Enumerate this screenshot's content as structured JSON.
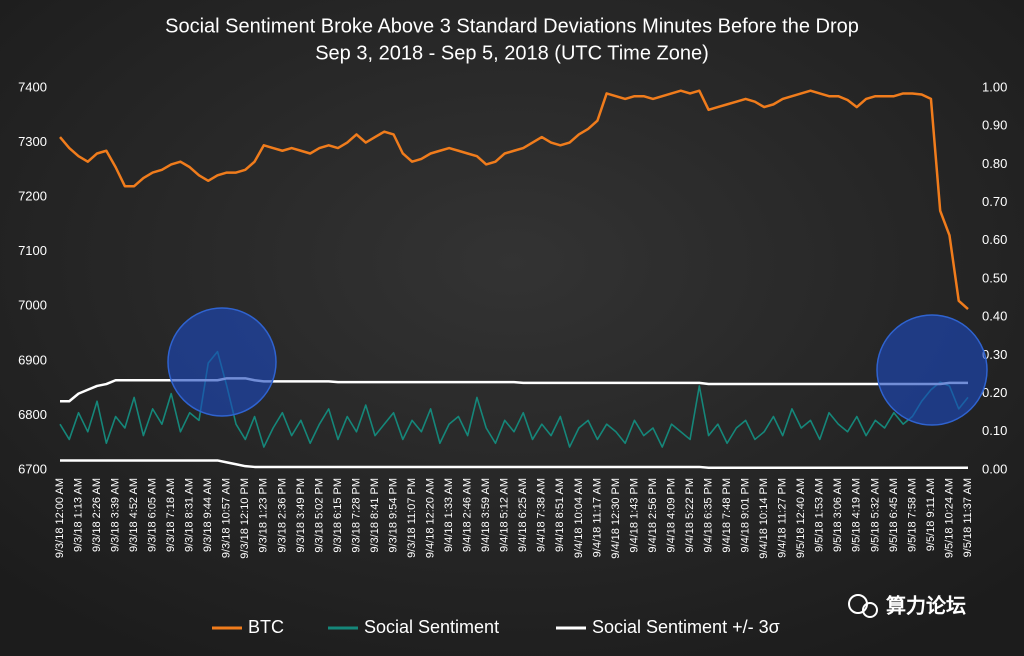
{
  "chart_data": {
    "type": "line",
    "title": "Social Sentiment Broke Above 3 Standard Deviations Minutes Before the Drop",
    "subtitle": "Sep 3, 2018 - Sep 5, 2018 (UTC Time Zone)",
    "watermark": "算力论坛",
    "categories": [
      "9/3/18 12:00 AM",
      null,
      "9/3/18 1:13 AM",
      null,
      "9/3/18 2:26 AM",
      null,
      "9/3/18 3:39 AM",
      null,
      "9/3/18 4:52 AM",
      null,
      "9/3/18 6:05 AM",
      null,
      "9/3/18 7:18 AM",
      null,
      "9/3/18 8:31 AM",
      null,
      "9/3/18 9:44 AM",
      null,
      "9/3/18 10:57 AM",
      null,
      "9/3/18 12:10 PM",
      null,
      "9/3/18 1:23 PM",
      null,
      "9/3/18 2:36 PM",
      null,
      "9/3/18 3:49 PM",
      null,
      "9/3/18 5:02 PM",
      null,
      "9/3/18 6:15 PM",
      null,
      "9/3/18 7:28 PM",
      null,
      "9/3/18 8:41 PM",
      null,
      "9/3/18 9:54 PM",
      null,
      "9/3/18 11:07 PM",
      null,
      "9/4/18 12:20 AM",
      null,
      "9/4/18 1:33 AM",
      null,
      "9/4/18 2:46 AM",
      null,
      "9/4/18 3:59 AM",
      null,
      "9/4/18 5:12 AM",
      null,
      "9/4/18 6:25 AM",
      null,
      "9/4/18 7:38 AM",
      null,
      "9/4/18 8:51 AM",
      null,
      "9/4/18 10:04 AM",
      null,
      "9/4/18 11:17 AM",
      null,
      "9/4/18 12:30 PM",
      null,
      "9/4/18 1:43 PM",
      null,
      "9/4/18 2:56 PM",
      null,
      "9/4/18 4:09 PM",
      null,
      "9/4/18 5:22 PM",
      null,
      "9/4/18 6:35 PM",
      null,
      "9/4/18 7:48 PM",
      null,
      "9/4/18 9:01 PM",
      null,
      "9/4/18 10:14 PM",
      null,
      "9/4/18 11:27 PM",
      null,
      "9/5/18 12:40 AM",
      null,
      "9/5/18 1:53 AM",
      null,
      "9/5/18 3:06 AM",
      null,
      "9/5/18 4:19 AM",
      null,
      "9/5/18 5:32 AM",
      null,
      "9/5/18 6:45 AM",
      null,
      "9/5/18 7:58 AM",
      null,
      "9/5/18 9:11 AM",
      null,
      "9/5/18 10:24 AM",
      null,
      "9/5/18 11:37 AM"
    ],
    "ylim": [
      6700,
      7400
    ],
    "yticks": [
      6700,
      6800,
      6900,
      7000,
      7100,
      7200,
      7300,
      7400
    ],
    "y2lim": [
      0,
      1
    ],
    "y2ticks": [
      {
        "value": 0,
        "label": "0.00"
      },
      {
        "value": 0.1,
        "label": "0.10"
      },
      {
        "value": 0.2,
        "label": "0.20"
      },
      {
        "value": 0.3,
        "label": "0.30"
      },
      {
        "value": 0.4,
        "label": "0.40"
      },
      {
        "value": 0.5,
        "label": "0.50"
      },
      {
        "value": 0.6,
        "label": "0.60"
      },
      {
        "value": 0.7,
        "label": "0.70"
      },
      {
        "value": 0.8,
        "label": "0.80"
      },
      {
        "value": 0.9,
        "label": "0.90"
      },
      {
        "value": 1,
        "label": "1.00"
      }
    ],
    "grid": false,
    "legend": "bottom",
    "series": [
      {
        "name": "BTC",
        "color": "#f07c1c",
        "values": [
          7310,
          7290,
          7275,
          7265,
          7280,
          7285,
          7255,
          7220,
          7220,
          7235,
          7245,
          7250,
          7260,
          7265,
          7255,
          7240,
          7230,
          7240,
          7245,
          7245,
          7250,
          7265,
          7295,
          7290,
          7285,
          7290,
          7285,
          7280,
          7290,
          7295,
          7290,
          7300,
          7315,
          7300,
          7310,
          7320,
          7315,
          7280,
          7265,
          7270,
          7280,
          7285,
          7290,
          7285,
          7280,
          7275,
          7260,
          7265,
          7280,
          7285,
          7290,
          7300,
          7310,
          7300,
          7295,
          7300,
          7315,
          7325,
          7340,
          7390,
          7385,
          7380,
          7385,
          7385,
          7380,
          7385,
          7390,
          7395,
          7390,
          7395,
          7360,
          7365,
          7370,
          7375,
          7380,
          7375,
          7365,
          7370,
          7380,
          7385,
          7390,
          7395,
          7390,
          7385,
          7385,
          7378,
          7365,
          7380,
          7385,
          7385,
          7385,
          7390,
          7390,
          7388,
          7380,
          7175,
          7130,
          7010,
          6995
        ]
      },
      {
        "name": "Social Sentiment",
        "color": "#15877a",
        "axis": "y2",
        "values": [
          0.12,
          0.08,
          0.15,
          0.1,
          0.18,
          0.07,
          0.14,
          0.11,
          0.19,
          0.09,
          0.16,
          0.12,
          0.2,
          0.1,
          0.15,
          0.13,
          0.28,
          0.31,
          0.22,
          0.12,
          0.08,
          0.14,
          0.06,
          0.11,
          0.15,
          0.09,
          0.13,
          0.07,
          0.12,
          0.16,
          0.08,
          0.14,
          0.1,
          0.17,
          0.09,
          0.12,
          0.15,
          0.08,
          0.13,
          0.1,
          0.16,
          0.07,
          0.12,
          0.14,
          0.09,
          0.19,
          0.11,
          0.07,
          0.13,
          0.1,
          0.15,
          0.08,
          0.12,
          0.09,
          0.14,
          0.06,
          0.11,
          0.13,
          0.08,
          0.12,
          0.1,
          0.07,
          0.13,
          0.09,
          0.11,
          0.06,
          0.12,
          0.1,
          0.08,
          0.22,
          0.09,
          0.12,
          0.07,
          0.11,
          0.13,
          0.08,
          0.1,
          0.14,
          0.09,
          0.16,
          0.11,
          0.13,
          0.08,
          0.15,
          0.12,
          0.1,
          0.14,
          0.09,
          0.13,
          0.11,
          0.15,
          0.12,
          0.14,
          0.18,
          0.21,
          0.23,
          0.22,
          0.16,
          0.19
        ]
      },
      {
        "name": "Social Sentiment +/- 3σ",
        "color": "#ffffff",
        "axis": "y2",
        "values": [
          0.18,
          0.18,
          0.2,
          0.21,
          0.22,
          0.225,
          0.235,
          0.235,
          0.235,
          0.235,
          0.235,
          0.235,
          0.235,
          0.235,
          0.235,
          0.235,
          0.235,
          0.235,
          0.24,
          0.24,
          0.24,
          0.235,
          0.232,
          0.232,
          0.232,
          0.232,
          0.232,
          0.232,
          0.232,
          0.232,
          0.23,
          0.23,
          0.23,
          0.23,
          0.23,
          0.23,
          0.23,
          0.23,
          0.23,
          0.23,
          0.23,
          0.23,
          0.23,
          0.23,
          0.23,
          0.23,
          0.23,
          0.23,
          0.23,
          0.23,
          0.228,
          0.228,
          0.228,
          0.228,
          0.228,
          0.228,
          0.228,
          0.228,
          0.228,
          0.228,
          0.228,
          0.228,
          0.228,
          0.228,
          0.228,
          0.228,
          0.228,
          0.228,
          0.228,
          0.228,
          0.225,
          0.225,
          0.225,
          0.225,
          0.225,
          0.225,
          0.225,
          0.225,
          0.225,
          0.225,
          0.225,
          0.225,
          0.225,
          0.225,
          0.225,
          0.225,
          0.225,
          0.225,
          0.225,
          0.225,
          0.225,
          0.225,
          0.225,
          0.225,
          0.225,
          0.225,
          0.228,
          0.228,
          0.228
        ],
        "lower": [
          0.025,
          0.025,
          0.025,
          0.025,
          0.025,
          0.025,
          0.025,
          0.025,
          0.025,
          0.025,
          0.025,
          0.025,
          0.025,
          0.025,
          0.025,
          0.025,
          0.025,
          0.025,
          0.02,
          0.015,
          0.01,
          0.008,
          0.008,
          0.008,
          0.008,
          0.008,
          0.008,
          0.008,
          0.008,
          0.008,
          0.008,
          0.008,
          0.008,
          0.008,
          0.008,
          0.008,
          0.008,
          0.008,
          0.008,
          0.008,
          0.008,
          0.008,
          0.008,
          0.008,
          0.008,
          0.008,
          0.008,
          0.008,
          0.008,
          0.008,
          0.008,
          0.008,
          0.008,
          0.008,
          0.008,
          0.008,
          0.008,
          0.008,
          0.008,
          0.008,
          0.008,
          0.008,
          0.008,
          0.008,
          0.008,
          0.008,
          0.008,
          0.008,
          0.008,
          0.008,
          0.006,
          0.006,
          0.006,
          0.006,
          0.006,
          0.006,
          0.006,
          0.006,
          0.006,
          0.006,
          0.006,
          0.006,
          0.006,
          0.006,
          0.006,
          0.006,
          0.006,
          0.006,
          0.006,
          0.006,
          0.006,
          0.006,
          0.006,
          0.006,
          0.006,
          0.006,
          0.006,
          0.006,
          0.006
        ]
      }
    ]
  }
}
